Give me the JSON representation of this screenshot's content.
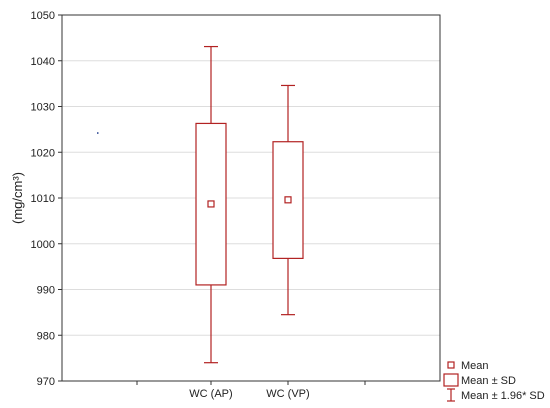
{
  "chart_data": {
    "type": "box",
    "title": "",
    "xlabel": "",
    "ylabel": "(mg/cm³)",
    "ylim": [
      970,
      1050
    ],
    "yticks": [
      970,
      980,
      990,
      1000,
      1010,
      1020,
      1030,
      1040,
      1050
    ],
    "grid": "horizontal",
    "legend_position": "bottom-right",
    "colors": {
      "box": "#b22222",
      "grid": "#dddddd",
      "axis": "#333333",
      "stray_point": "#1f3b8c"
    },
    "categories": [
      "WC (AP)",
      "WC (VP)"
    ],
    "boxes": [
      {
        "category": "WC (AP)",
        "mean": 1008.7,
        "sd_low": 991.0,
        "sd_high": 1026.3,
        "ci_low": 974.0,
        "ci_high": 1043.1
      },
      {
        "category": "WC (VP)",
        "mean": 1009.6,
        "sd_low": 996.8,
        "sd_high": 1022.3,
        "ci_low": 984.5,
        "ci_high": 1034.6
      }
    ],
    "stray_point": {
      "y": 1024.2
    },
    "legend": [
      {
        "symbol": "mean",
        "label": "Mean"
      },
      {
        "symbol": "box",
        "label": "Mean ± SD"
      },
      {
        "symbol": "whisker",
        "label": "Mean ± 1.96* SD"
      }
    ]
  }
}
